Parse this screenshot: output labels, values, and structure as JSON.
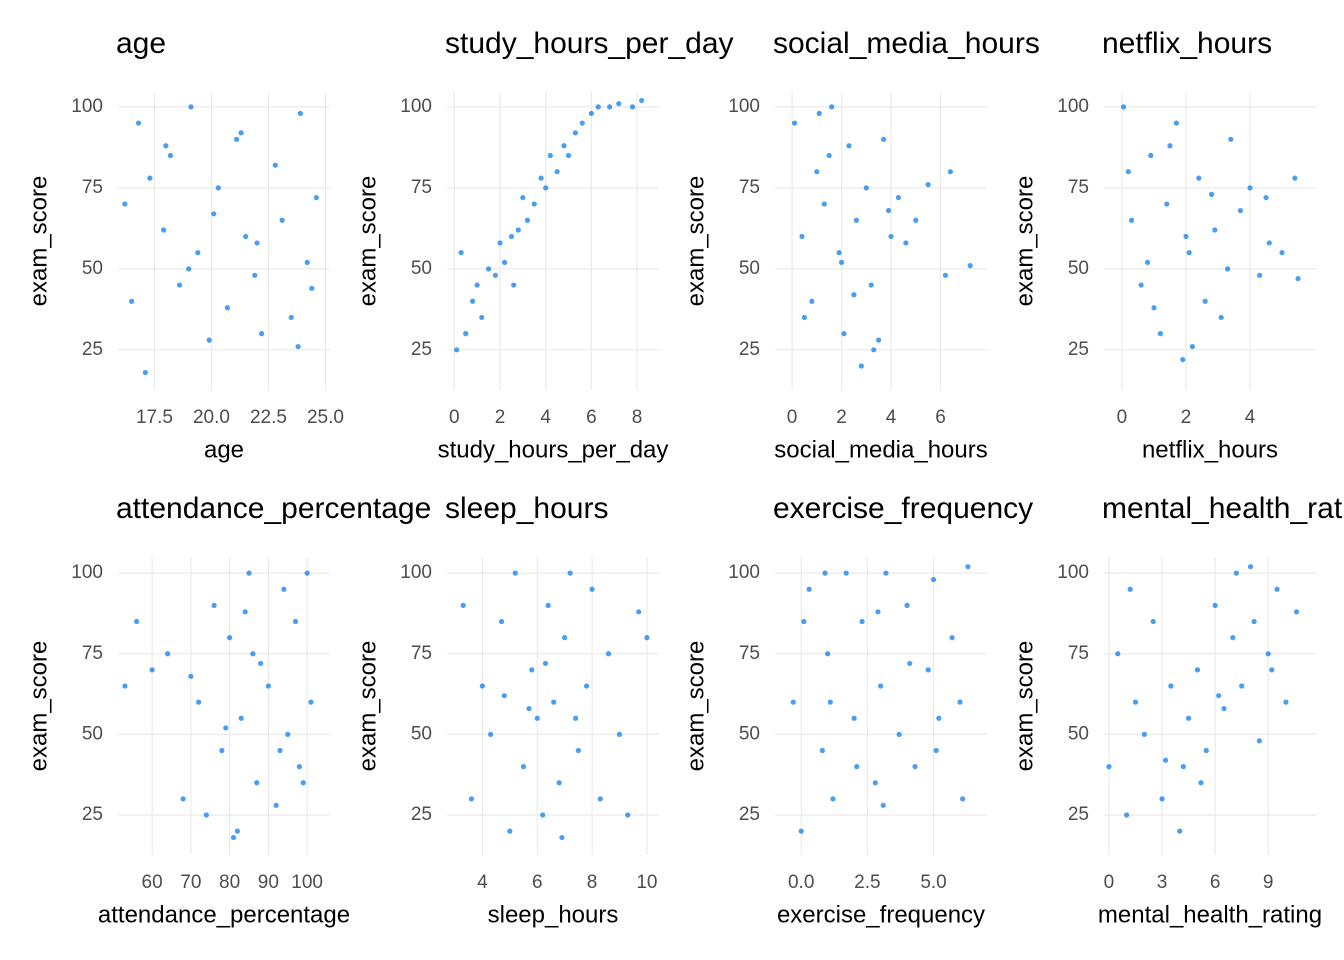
{
  "chart_data": [
    {
      "type": "scatter",
      "title": "age",
      "x_label": "age",
      "y_label": "exam_score",
      "color": "#1c86ee",
      "x": [
        16.2,
        16.8,
        17.1,
        17.9,
        18.2,
        18.6,
        19.1,
        19.4,
        19.9,
        20.3,
        20.7,
        21.1,
        21.5,
        21.9,
        22.2,
        22.8,
        23.1,
        23.5,
        23.9,
        24.2,
        24.6,
        16.5,
        18.0,
        20.1,
        22.0,
        23.8,
        17.3,
        19.0,
        21.3,
        24.4
      ],
      "y": [
        70,
        95,
        18,
        62,
        85,
        45,
        100,
        55,
        28,
        75,
        38,
        90,
        60,
        48,
        30,
        82,
        65,
        35,
        98,
        52,
        72,
        40,
        88,
        67,
        58,
        26,
        78,
        50,
        92,
        44
      ],
      "xlim": [
        15.9,
        25.2
      ],
      "ylim": [
        12.6,
        104.6
      ],
      "xticks": [
        17.5,
        {
          "value": 20,
          "label": "20.0"
        },
        22.5,
        {
          "value": 25,
          "label": "25.0"
        }
      ],
      "yticks": [
        25,
        50,
        75,
        100
      ]
    },
    {
      "type": "scatter",
      "title": "study_hours_per_day",
      "x_label": "study_hours_per_day",
      "y_label": "exam_score",
      "color": "#1c86ee",
      "x": [
        0.1,
        0.3,
        0.5,
        0.8,
        1.0,
        1.2,
        1.5,
        1.8,
        2.0,
        2.2,
        2.5,
        2.8,
        3.0,
        3.2,
        3.5,
        3.8,
        4.0,
        4.2,
        4.5,
        4.8,
        5.0,
        5.3,
        5.6,
        6.0,
        6.3,
        6.8,
        7.2,
        7.8,
        8.2,
        2.6
      ],
      "y": [
        25,
        55,
        30,
        40,
        45,
        35,
        50,
        48,
        58,
        52,
        60,
        62,
        72,
        65,
        70,
        78,
        75,
        85,
        80,
        88,
        85,
        92,
        95,
        98,
        100,
        100,
        101,
        100,
        102,
        45
      ],
      "xlim": [
        -0.32,
        8.96
      ],
      "ylim": [
        12.6,
        104.6
      ],
      "xticks": [
        0,
        2,
        4,
        6,
        8
      ],
      "yticks": [
        25,
        50,
        75,
        100
      ]
    },
    {
      "type": "scatter",
      "title": "social_media_hours",
      "x_label": "social_media_hours",
      "y_label": "exam_score",
      "color": "#1c86ee",
      "x": [
        0.1,
        0.4,
        0.8,
        1.0,
        1.3,
        1.6,
        1.9,
        2.1,
        2.3,
        2.6,
        2.8,
        3.0,
        3.2,
        3.5,
        3.7,
        4.0,
        4.3,
        4.6,
        5.0,
        5.5,
        6.2,
        6.4,
        7.2,
        0.5,
        1.5,
        2.5,
        3.3,
        2.0,
        1.1,
        3.9
      ],
      "y": [
        95,
        60,
        40,
        80,
        70,
        100,
        55,
        30,
        88,
        65,
        20,
        75,
        45,
        28,
        90,
        60,
        72,
        58,
        65,
        76,
        48,
        80,
        51,
        35,
        85,
        42,
        25,
        52,
        98,
        68
      ],
      "xlim": [
        -0.69,
        7.88
      ],
      "ylim": [
        12.6,
        104.6
      ],
      "xticks": [
        0,
        2,
        4,
        6
      ],
      "yticks": [
        25,
        50,
        75,
        100
      ]
    },
    {
      "type": "scatter",
      "title": "netflix_hours",
      "x_label": "netflix_hours",
      "y_label": "exam_score",
      "color": "#1c86ee",
      "x": [
        0.05,
        0.3,
        0.6,
        0.9,
        1.2,
        1.4,
        1.7,
        1.9,
        2.1,
        2.4,
        2.6,
        2.9,
        3.1,
        3.4,
        3.7,
        4.0,
        4.3,
        4.6,
        5.0,
        5.4,
        5.5,
        0.8,
        1.5,
        2.2,
        2.8,
        3.3,
        1.0,
        0.2,
        2.0,
        4.5
      ],
      "y": [
        100,
        65,
        45,
        85,
        30,
        70,
        95,
        22,
        55,
        78,
        40,
        62,
        35,
        90,
        68,
        75,
        48,
        58,
        55,
        78,
        47,
        52,
        88,
        26,
        73,
        50,
        38,
        80,
        60,
        72
      ],
      "xlim": [
        -0.56,
        6.06
      ],
      "ylim": [
        12.6,
        104.6
      ],
      "xticks": [
        0,
        2,
        4
      ],
      "yticks": [
        25,
        50,
        75,
        100
      ]
    },
    {
      "type": "scatter",
      "title": "attendance_percentage",
      "x_label": "attendance_percentage",
      "y_label": "exam_score",
      "color": "#1c86ee",
      "x": [
        53,
        56,
        60,
        64,
        68,
        72,
        74,
        76,
        78,
        80,
        81,
        83,
        85,
        87,
        88,
        90,
        92,
        94,
        95,
        97,
        98,
        100,
        101,
        82,
        79,
        86,
        93,
        99,
        70,
        84
      ],
      "y": [
        65,
        85,
        70,
        75,
        30,
        60,
        25,
        90,
        45,
        80,
        18,
        55,
        100,
        35,
        72,
        65,
        28,
        95,
        50,
        85,
        40,
        100,
        60,
        20,
        52,
        75,
        45,
        35,
        68,
        88
      ],
      "xlim": [
        51.2,
        105.9
      ],
      "ylim": [
        12.6,
        105
      ],
      "xticks": [
        60,
        70,
        80,
        90,
        100
      ],
      "yticks": [
        25,
        50,
        75,
        100
      ]
    },
    {
      "type": "scatter",
      "title": "sleep_hours",
      "x_label": "sleep_hours",
      "y_label": "exam_score",
      "color": "#1c86ee",
      "x": [
        3.3,
        3.6,
        4.0,
        4.3,
        4.7,
        5.0,
        5.2,
        5.5,
        5.8,
        6.0,
        6.2,
        6.4,
        6.6,
        6.8,
        7.0,
        7.2,
        7.5,
        7.8,
        8.0,
        8.3,
        8.6,
        9.0,
        9.3,
        9.7,
        10.0,
        5.7,
        6.3,
        6.9,
        7.4,
        4.8
      ],
      "y": [
        90,
        30,
        65,
        50,
        85,
        20,
        100,
        40,
        70,
        55,
        25,
        90,
        60,
        35,
        80,
        100,
        45,
        65,
        95,
        30,
        75,
        50,
        25,
        88,
        80,
        58,
        72,
        18,
        55,
        62
      ],
      "xlim": [
        2.71,
        10.44
      ],
      "ylim": [
        12.6,
        105
      ],
      "xticks": [
        4,
        6,
        8,
        10
      ],
      "yticks": [
        25,
        50,
        75,
        100
      ]
    },
    {
      "type": "scatter",
      "title": "exercise_frequency",
      "x_label": "exercise_frequency",
      "y_label": "exam_score",
      "color": "#1c86ee",
      "x": [
        -0.3,
        0.0,
        0.3,
        0.8,
        1.0,
        1.2,
        1.7,
        2.0,
        2.3,
        2.8,
        3.0,
        3.2,
        3.7,
        4.0,
        4.3,
        4.8,
        5.0,
        5.2,
        5.7,
        6.0,
        6.3,
        0.1,
        1.1,
        2.1,
        3.1,
        4.1,
        5.1,
        6.1,
        0.9,
        2.9
      ],
      "y": [
        60,
        20,
        95,
        45,
        75,
        30,
        100,
        55,
        85,
        35,
        65,
        100,
        50,
        90,
        40,
        70,
        98,
        55,
        80,
        60,
        102,
        85,
        60,
        40,
        28,
        72,
        45,
        30,
        100,
        88
      ],
      "xlim": [
        -0.99,
        7.02
      ],
      "ylim": [
        12.6,
        105
      ],
      "xticks": [
        {
          "value": 0,
          "label": "0.0"
        },
        2.5,
        {
          "value": 5,
          "label": "5.0"
        }
      ],
      "yticks": [
        25,
        50,
        75,
        100
      ]
    },
    {
      "type": "scatter",
      "title": "mental_health_rating",
      "x_label": "mental_health_rating",
      "y_label": "exam_score",
      "color": "#1c86ee",
      "x": [
        0.0,
        0.5,
        1.0,
        1.5,
        2.0,
        2.5,
        3.0,
        3.5,
        4.0,
        4.5,
        5.0,
        5.5,
        6.0,
        6.5,
        7.0,
        7.5,
        8.0,
        8.5,
        9.0,
        9.5,
        10.0,
        10.6,
        1.2,
        3.2,
        5.2,
        7.2,
        9.2,
        4.2,
        6.2,
        8.2
      ],
      "y": [
        40,
        75,
        25,
        60,
        50,
        85,
        30,
        65,
        20,
        55,
        70,
        45,
        90,
        58,
        80,
        65,
        102,
        48,
        75,
        95,
        60,
        88,
        95,
        42,
        35,
        100,
        70,
        40,
        62,
        85
      ],
      "xlim": [
        -0.28,
        11.7
      ],
      "ylim": [
        12.6,
        105
      ],
      "xticks": [
        0,
        3,
        6,
        9
      ],
      "yticks": [
        25,
        50,
        75,
        100
      ]
    }
  ]
}
